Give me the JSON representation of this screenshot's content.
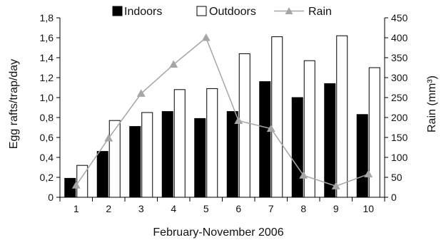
{
  "chart_data": {
    "type": "bar+line",
    "categories": [
      "1",
      "2",
      "3",
      "4",
      "5",
      "6",
      "7",
      "8",
      "9",
      "10"
    ],
    "xlabel": "February-November 2006",
    "ylabel_left": "Egg rafts/trap/day",
    "ylabel_right": "Rain (mm³)",
    "ylim_left": [
      0,
      1.8
    ],
    "yticks_left": [
      "0",
      "0,2",
      "0,4",
      "0,6",
      "0,8",
      "1,0",
      "1,2",
      "1,4",
      "1,6",
      "1,8"
    ],
    "ylim_right": [
      0,
      450
    ],
    "yticks_right": [
      "0",
      "50",
      "100",
      "150",
      "200",
      "250",
      "300",
      "350",
      "400",
      "450"
    ],
    "grid": false,
    "legend_position": "top",
    "series": [
      {
        "name": "Indoors",
        "type": "bar",
        "axis": "left",
        "color": "#000000",
        "values": [
          0.19,
          0.46,
          0.71,
          0.86,
          0.79,
          0.86,
          1.16,
          1.0,
          1.14,
          0.83
        ]
      },
      {
        "name": "Outdoors",
        "type": "bar",
        "axis": "left",
        "color": "#ffffff",
        "values": [
          0.32,
          0.77,
          0.85,
          1.08,
          1.09,
          1.44,
          1.61,
          1.37,
          1.62,
          1.3
        ]
      },
      {
        "name": "Rain",
        "type": "line",
        "axis": "right",
        "color": "#a6a6a6",
        "values": [
          30,
          148,
          260,
          333,
          400,
          192,
          172,
          55,
          28,
          58
        ]
      }
    ]
  }
}
